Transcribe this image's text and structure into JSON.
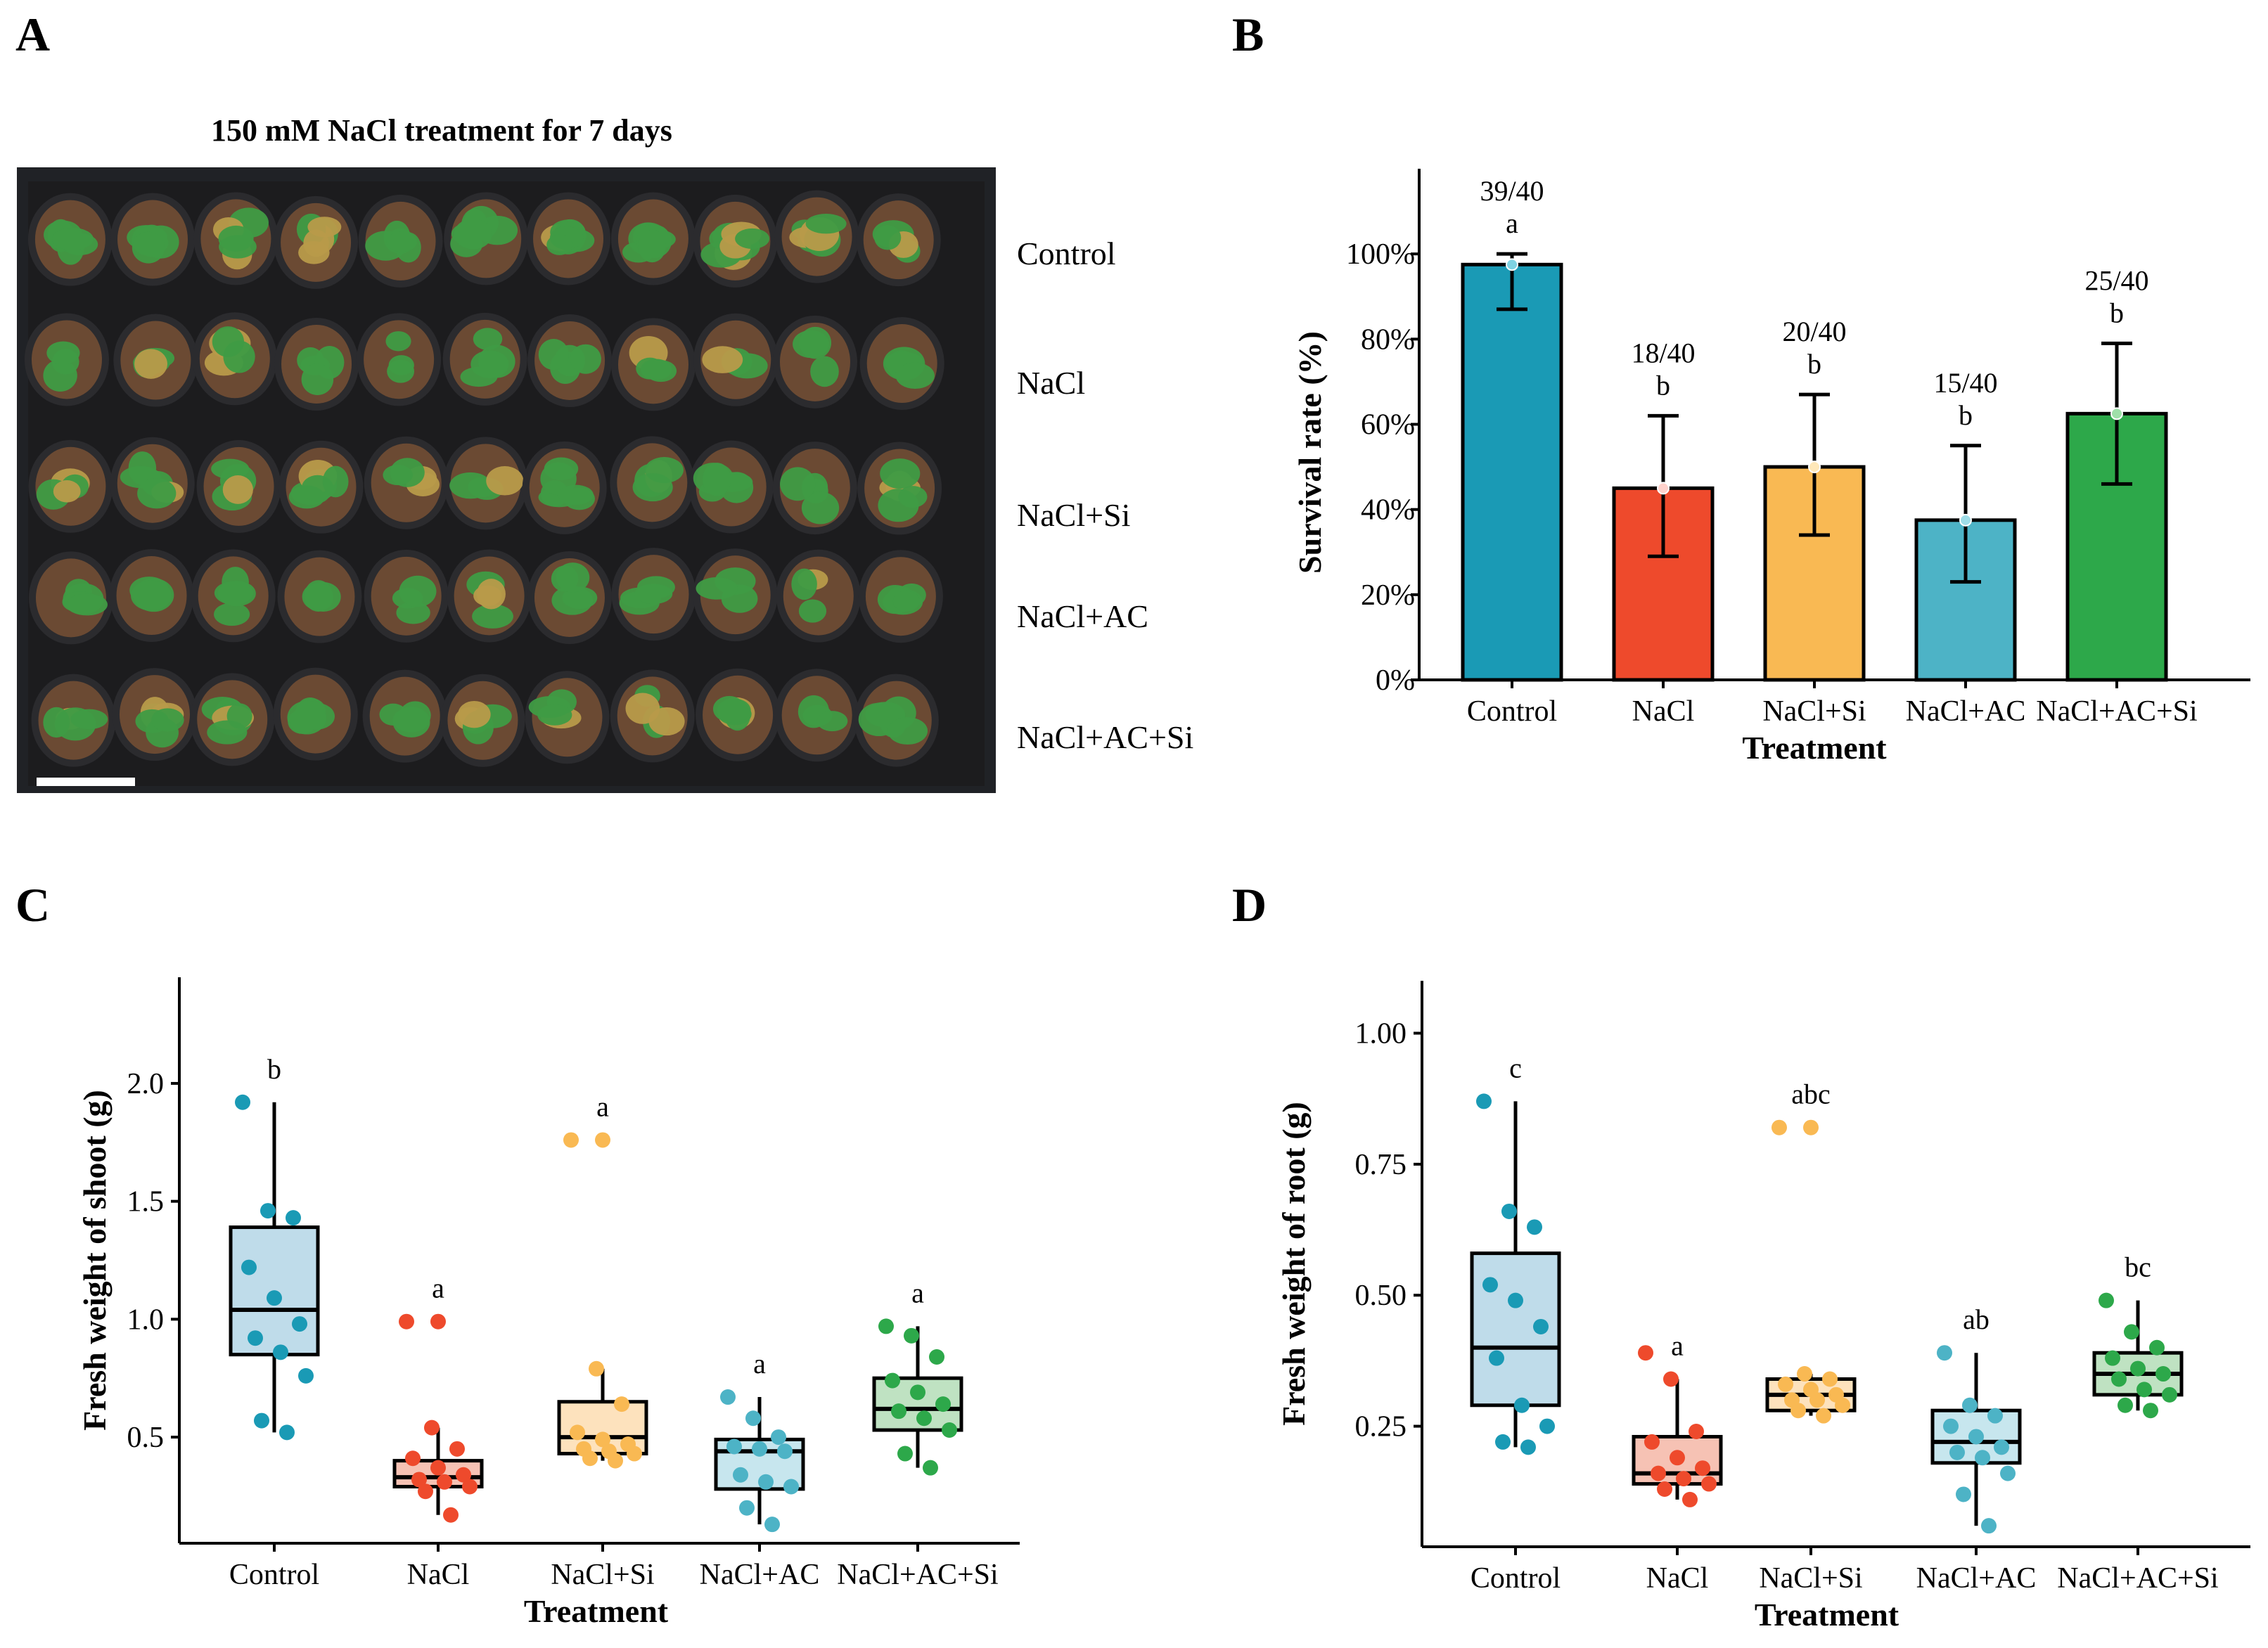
{
  "panels": {
    "A": "A",
    "B": "B",
    "C": "C",
    "D": "D"
  },
  "photo": {
    "title": "150 mM NaCl treatment for 7 days",
    "rows": [
      "Control",
      "NaCl",
      "NaCl+Si",
      "NaCl+AC",
      "NaCl+AC+Si"
    ],
    "colors": {
      "tray": "#1c1c1e",
      "soil": "#6b4a33",
      "leaf": "#3f9b45",
      "scale_bar": "#ffffff"
    }
  },
  "chart_data": [
    {
      "id": "B",
      "type": "bar",
      "categories": [
        "Control",
        "NaCl",
        "NaCl+Si",
        "NaCl+AC",
        "NaCl+AC+Si"
      ],
      "values": [
        97.5,
        45,
        50,
        37.5,
        62.5
      ],
      "error_low": [
        87,
        29,
        34,
        23,
        46
      ],
      "error_high": [
        100,
        62,
        67,
        55,
        79
      ],
      "counts": [
        "39/40",
        "18/40",
        "20/40",
        "15/40",
        "25/40"
      ],
      "letters": [
        "a",
        "b",
        "b",
        "b",
        "b"
      ],
      "colors": [
        "#1a9ab5",
        "#ee4a2c",
        "#f9b953",
        "#4db3c6",
        "#2da84a"
      ],
      "point_colors": [
        "#7fd3e3",
        "#ffd2cc",
        "#ffe8b9",
        "#9fdde8",
        "#9fe0a9"
      ],
      "yticks": [
        "0%",
        "20%",
        "40%",
        "60%",
        "80%",
        "100%"
      ],
      "ytick_values": [
        0,
        20,
        40,
        60,
        80,
        100
      ],
      "ylim": [
        0,
        120
      ],
      "xlabel": "Treatment",
      "ylabel": "Survival rate (%)"
    },
    {
      "id": "C",
      "type": "box",
      "categories": [
        "Control",
        "NaCl",
        "NaCl+Si",
        "NaCl+AC",
        "NaCl+AC+Si"
      ],
      "boxes": [
        {
          "q1": 0.85,
          "median": 1.04,
          "q3": 1.39,
          "low": 0.52,
          "high": 1.92
        },
        {
          "q1": 0.29,
          "median": 0.33,
          "q3": 0.4,
          "low": 0.17,
          "high": 0.54
        },
        {
          "q1": 0.43,
          "median": 0.5,
          "q3": 0.65,
          "low": 0.4,
          "high": 0.79
        },
        {
          "q1": 0.28,
          "median": 0.44,
          "q3": 0.49,
          "low": 0.13,
          "high": 0.67
        },
        {
          "q1": 0.53,
          "median": 0.62,
          "q3": 0.75,
          "low": 0.37,
          "high": 0.97
        }
      ],
      "points": [
        [
          1.92,
          1.46,
          1.43,
          1.22,
          1.09,
          0.98,
          0.92,
          0.86,
          0.76,
          0.57,
          0.52
        ],
        [
          0.99,
          0.54,
          0.45,
          0.41,
          0.37,
          0.34,
          0.32,
          0.31,
          0.29,
          0.27,
          0.17
        ],
        [
          1.76,
          0.79,
          0.64,
          0.52,
          0.49,
          0.47,
          0.45,
          0.44,
          0.43,
          0.41,
          0.4
        ],
        [
          0.67,
          0.58,
          0.5,
          0.46,
          0.45,
          0.44,
          0.34,
          0.31,
          0.29,
          0.2,
          0.13
        ],
        [
          0.97,
          0.93,
          0.84,
          0.74,
          0.69,
          0.64,
          0.61,
          0.58,
          0.53,
          0.43,
          0.37
        ]
      ],
      "letters": [
        "b",
        "a",
        "a",
        "a",
        "a"
      ],
      "outliers": [
        null,
        0.99,
        1.76,
        null,
        null
      ],
      "colors": [
        "#1a9ab5",
        "#ee4a2c",
        "#f9b953",
        "#4db3c6",
        "#2da84a"
      ],
      "box_fills": [
        "#bfdcea",
        "#f6c2b4",
        "#fde2bd",
        "#c7e6ee",
        "#bfe2c2"
      ],
      "yticks": [
        "0.5",
        "1.0",
        "1.5",
        "2.0"
      ],
      "ytick_values": [
        0.5,
        1.0,
        1.5,
        2.0
      ],
      "ylim": [
        0.05,
        2.45
      ],
      "xlabel": "Treatment",
      "ylabel": "Fresh weight of shoot (g)"
    },
    {
      "id": "D",
      "type": "box",
      "categories": [
        "Control",
        "NaCl",
        "NaCl+Si",
        "NaCl+AC",
        "NaCl+AC+Si"
      ],
      "boxes": [
        {
          "q1": 0.29,
          "median": 0.4,
          "q3": 0.58,
          "low": 0.21,
          "high": 0.87
        },
        {
          "q1": 0.14,
          "median": 0.16,
          "q3": 0.23,
          "low": 0.11,
          "high": 0.34
        },
        {
          "q1": 0.28,
          "median": 0.31,
          "q3": 0.34,
          "low": 0.27,
          "high": 0.35
        },
        {
          "q1": 0.18,
          "median": 0.22,
          "q3": 0.28,
          "low": 0.06,
          "high": 0.39
        },
        {
          "q1": 0.31,
          "median": 0.35,
          "q3": 0.39,
          "low": 0.28,
          "high": 0.49
        }
      ],
      "points": [
        [
          0.87,
          0.66,
          0.63,
          0.52,
          0.49,
          0.44,
          0.38,
          0.29,
          0.25,
          0.22,
          0.21
        ],
        [
          0.39,
          0.34,
          0.24,
          0.22,
          0.19,
          0.17,
          0.16,
          0.15,
          0.14,
          0.13,
          0.11
        ],
        [
          0.82,
          0.35,
          0.34,
          0.33,
          0.32,
          0.31,
          0.3,
          0.3,
          0.29,
          0.28,
          0.27
        ],
        [
          0.39,
          0.29,
          0.27,
          0.25,
          0.23,
          0.21,
          0.2,
          0.19,
          0.16,
          0.12,
          0.06
        ],
        [
          0.49,
          0.43,
          0.4,
          0.38,
          0.36,
          0.35,
          0.34,
          0.32,
          0.31,
          0.29,
          0.28
        ]
      ],
      "letters": [
        "c",
        "a",
        "abc",
        "ab",
        "bc"
      ],
      "outliers": [
        null,
        null,
        0.82,
        null,
        null
      ],
      "colors": [
        "#1a9ab5",
        "#ee4a2c",
        "#f9b953",
        "#4db3c6",
        "#2da84a"
      ],
      "box_fills": [
        "#bfdcea",
        "#f6c2b4",
        "#fde2bd",
        "#c7e6ee",
        "#bfe2c2"
      ],
      "yticks": [
        "0.25",
        "0.50",
        "0.75",
        "1.00"
      ],
      "ytick_values": [
        0.25,
        0.5,
        0.75,
        1.0
      ],
      "ylim": [
        0.02,
        1.1
      ],
      "xlabel": "Treatment",
      "ylabel": "Fresh weight of root (g)"
    }
  ]
}
